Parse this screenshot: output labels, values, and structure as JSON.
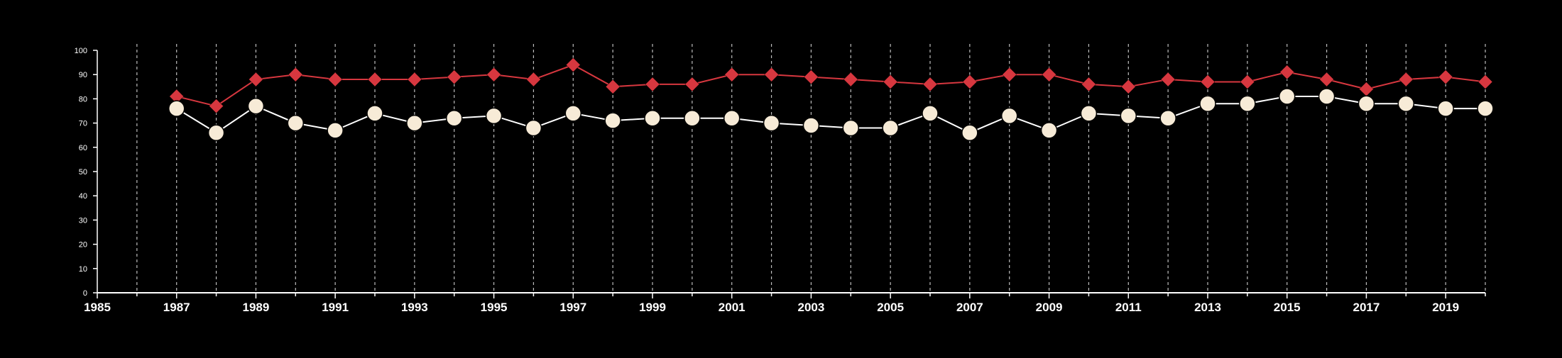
{
  "chart_data": {
    "type": "line",
    "title": "",
    "xlabel": "",
    "ylabel": "",
    "xlim": [
      1985,
      2020
    ],
    "ylim": [
      0,
      100
    ],
    "x_ticks": [
      1985,
      1987,
      1989,
      1991,
      1993,
      1995,
      1997,
      1999,
      2001,
      2003,
      2005,
      2007,
      2009,
      2011,
      2013,
      2015,
      2017,
      2019
    ],
    "y_ticks": [
      0,
      10,
      20,
      30,
      40,
      50,
      60,
      70,
      80,
      90,
      100
    ],
    "grid": "vertical dashed lines at every year",
    "legend": "none",
    "background": "#000000",
    "x": [
      1987,
      1988,
      1989,
      1990,
      1991,
      1992,
      1993,
      1994,
      1995,
      1996,
      1997,
      1998,
      1999,
      2000,
      2001,
      2002,
      2003,
      2004,
      2005,
      2006,
      2007,
      2008,
      2009,
      2010,
      2011,
      2012,
      2013,
      2014,
      2015,
      2016,
      2017,
      2018,
      2019,
      2020
    ],
    "series": [
      {
        "marker": "diamond",
        "color": "#d7373f",
        "values": [
          81,
          77,
          88,
          90,
          88,
          88,
          88,
          89,
          90,
          88,
          94,
          85,
          86,
          86,
          90,
          90,
          89,
          88,
          87,
          86,
          87,
          90,
          90,
          86,
          85,
          88,
          87,
          87,
          91,
          88,
          84,
          88,
          89,
          87
        ]
      },
      {
        "marker": "circle",
        "color": "#f7ebd7",
        "line_color": "#ffffff",
        "values": [
          76,
          66,
          77,
          70,
          67,
          74,
          70,
          72,
          73,
          68,
          74,
          71,
          72,
          72,
          72,
          70,
          69,
          68,
          68,
          74,
          66,
          73,
          67,
          74,
          73,
          72,
          78,
          78,
          81,
          81,
          78,
          78,
          76,
          76
        ]
      }
    ]
  }
}
